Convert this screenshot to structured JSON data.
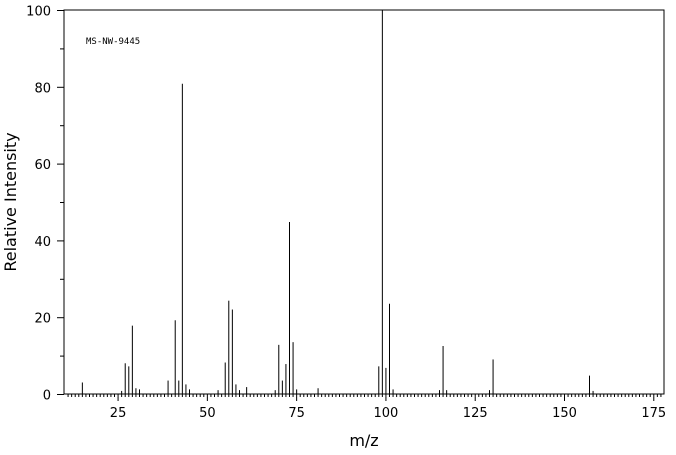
{
  "chart_data": {
    "type": "bar",
    "title": "",
    "annotation": "MS-NW-9445",
    "xlabel": "m/z",
    "ylabel": "Relative Intensity",
    "xlim": [
      10,
      178
    ],
    "ylim": [
      0,
      100
    ],
    "x_ticks": [
      25,
      50,
      75,
      100,
      125,
      150,
      175
    ],
    "y_ticks": [
      0,
      20,
      40,
      60,
      80,
      100
    ],
    "grid": false,
    "peaks": [
      {
        "mz": 15,
        "intensity": 3.0
      },
      {
        "mz": 26,
        "intensity": 0.8
      },
      {
        "mz": 27,
        "intensity": 8.0
      },
      {
        "mz": 28,
        "intensity": 7.2
      },
      {
        "mz": 29,
        "intensity": 17.8
      },
      {
        "mz": 30,
        "intensity": 1.5
      },
      {
        "mz": 31,
        "intensity": 1.2
      },
      {
        "mz": 39,
        "intensity": 3.5
      },
      {
        "mz": 41,
        "intensity": 19.2
      },
      {
        "mz": 42,
        "intensity": 3.5
      },
      {
        "mz": 43,
        "intensity": 80.8
      },
      {
        "mz": 44,
        "intensity": 2.5
      },
      {
        "mz": 45,
        "intensity": 1.2
      },
      {
        "mz": 53,
        "intensity": 1.0
      },
      {
        "mz": 55,
        "intensity": 8.2
      },
      {
        "mz": 56,
        "intensity": 24.3
      },
      {
        "mz": 57,
        "intensity": 22.0
      },
      {
        "mz": 58,
        "intensity": 2.5
      },
      {
        "mz": 59,
        "intensity": 1.0
      },
      {
        "mz": 61,
        "intensity": 1.8
      },
      {
        "mz": 69,
        "intensity": 1.0
      },
      {
        "mz": 70,
        "intensity": 12.8
      },
      {
        "mz": 71,
        "intensity": 3.5
      },
      {
        "mz": 72,
        "intensity": 7.8
      },
      {
        "mz": 73,
        "intensity": 44.8
      },
      {
        "mz": 74,
        "intensity": 13.5
      },
      {
        "mz": 75,
        "intensity": 1.2
      },
      {
        "mz": 81,
        "intensity": 1.5
      },
      {
        "mz": 98,
        "intensity": 7.2
      },
      {
        "mz": 99,
        "intensity": 100.0
      },
      {
        "mz": 100,
        "intensity": 6.8
      },
      {
        "mz": 101,
        "intensity": 23.5
      },
      {
        "mz": 102,
        "intensity": 1.2
      },
      {
        "mz": 115,
        "intensity": 1.0
      },
      {
        "mz": 116,
        "intensity": 12.5
      },
      {
        "mz": 117,
        "intensity": 1.0
      },
      {
        "mz": 129,
        "intensity": 1.0
      },
      {
        "mz": 130,
        "intensity": 9.0
      },
      {
        "mz": 157,
        "intensity": 4.8
      },
      {
        "mz": 158,
        "intensity": 0.8
      }
    ]
  }
}
